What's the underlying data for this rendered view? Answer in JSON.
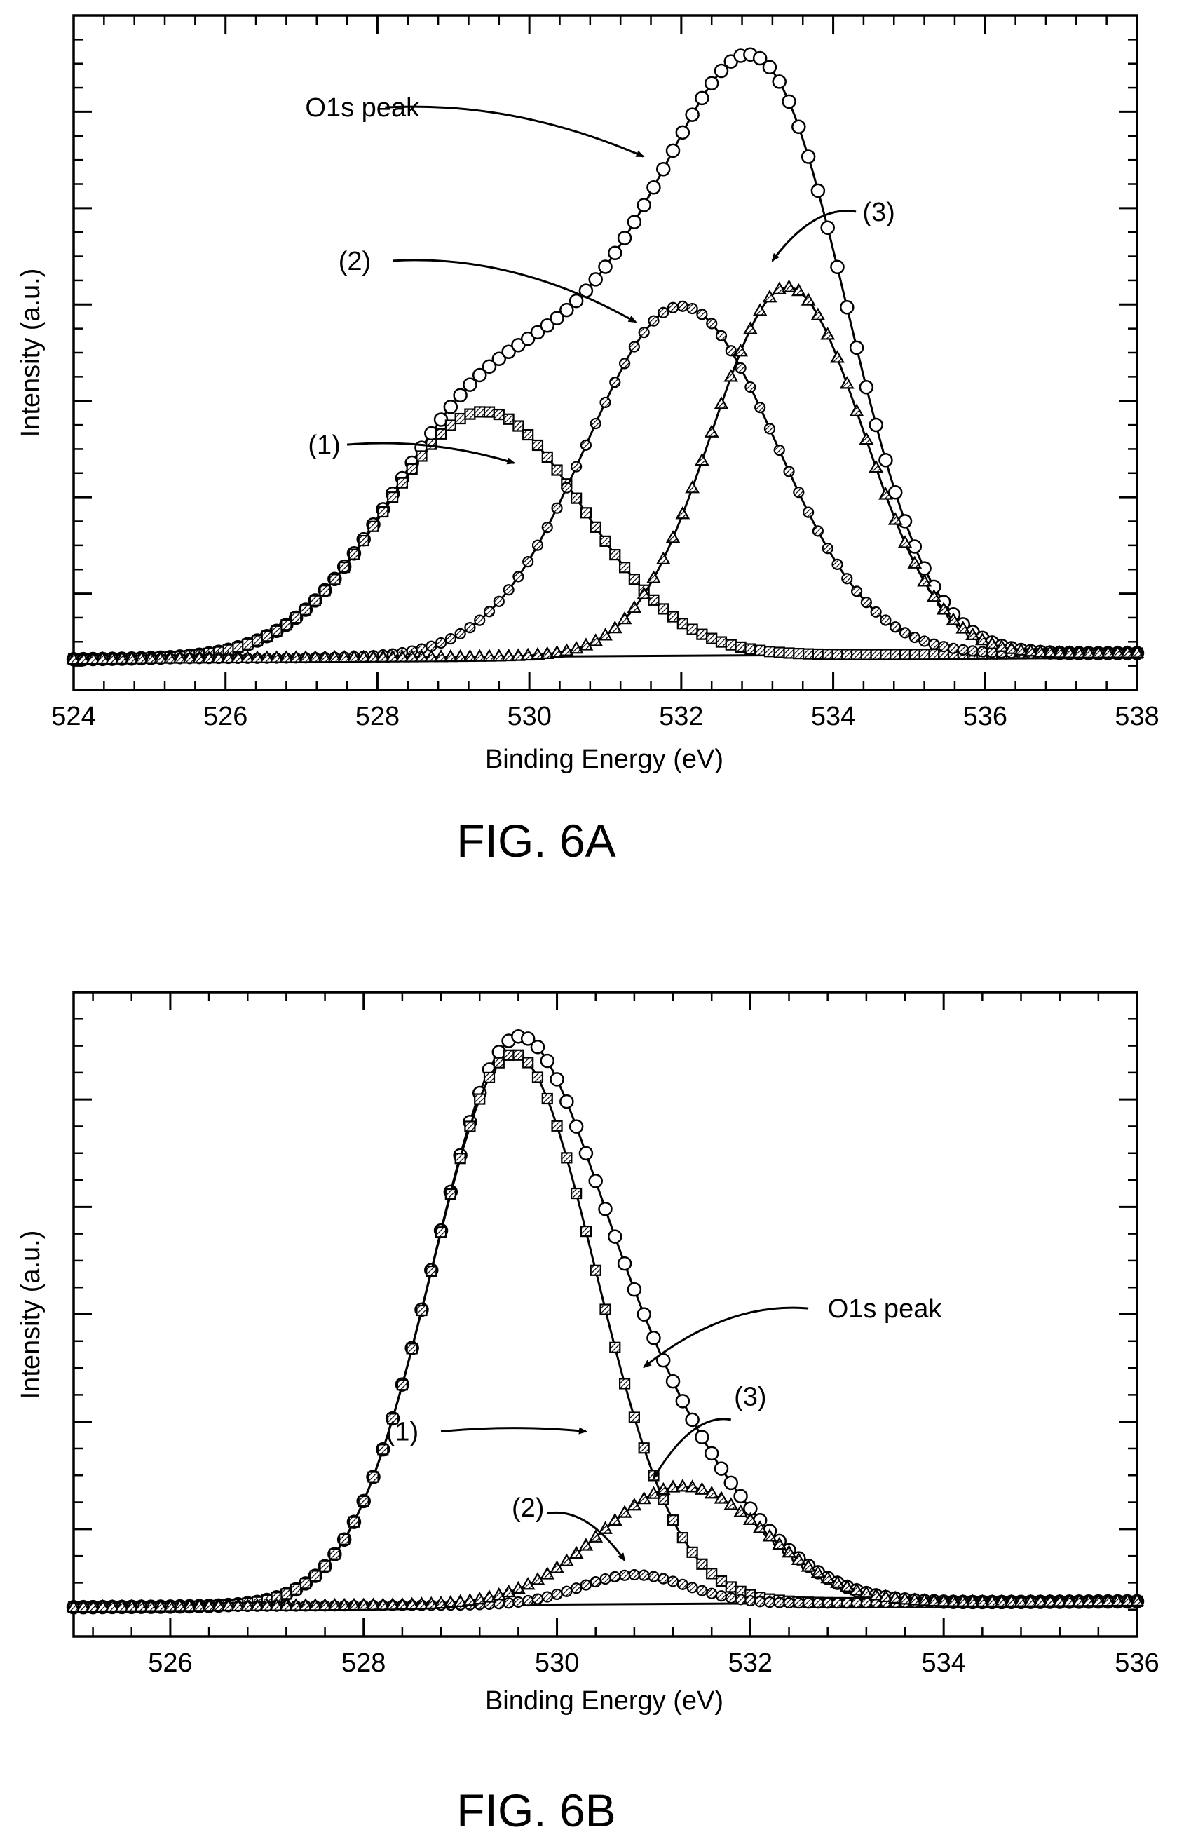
{
  "figures": [
    {
      "caption": "FIG. 6A",
      "chart_data": {
        "type": "line",
        "xlabel": "Binding Energy (eV)",
        "ylabel": "Intensity (a.u.)",
        "xlim": [
          524,
          538
        ],
        "x_ticks": [
          524,
          526,
          528,
          530,
          532,
          534,
          536,
          538
        ],
        "ylim": [
          -0.05,
          1.05
        ],
        "y_tick_labels": "none",
        "grid": false,
        "legend": "none",
        "baseline": [
          [
            524,
            0.0
          ],
          [
            538,
            0.01
          ]
        ],
        "series": [
          {
            "key": "o1s",
            "label": "O1s peak",
            "marker": "circle",
            "components": [
              {
                "c": 529.4,
                "a": 0.4,
                "w": 1.3
              },
              {
                "c": 532.0,
                "a": 0.57,
                "w": 1.25
              },
              {
                "c": 533.4,
                "a": 0.6,
                "w": 1.0
              }
            ]
          },
          {
            "key": "p1",
            "label": "(1)",
            "marker": "square",
            "components": [
              {
                "c": 529.4,
                "a": 0.4,
                "w": 1.3
              }
            ]
          },
          {
            "key": "p2",
            "label": "(2)",
            "marker": "hatched-circle",
            "components": [
              {
                "c": 532.0,
                "a": 0.57,
                "w": 1.25
              }
            ]
          },
          {
            "key": "p3",
            "label": "(3)",
            "marker": "triangle",
            "components": [
              {
                "c": 533.4,
                "a": 0.6,
                "w": 1.0
              }
            ]
          }
        ],
        "annotations": [
          {
            "label": "O1s peak",
            "text_x": 527.8,
            "text_y": 0.9,
            "arrow_to": [
              531.5,
              0.82
            ],
            "arrow_from": [
              528.1,
              0.9
            ]
          },
          {
            "label": "(2)",
            "text_x": 527.7,
            "text_y": 0.65,
            "arrow_to": [
              531.4,
              0.55
            ],
            "arrow_from": [
              528.2,
              0.65
            ]
          },
          {
            "label": "(3)",
            "text_x": 534.6,
            "text_y": 0.73,
            "arrow_to": [
              533.2,
              0.65
            ],
            "arrow_from": [
              534.3,
              0.73
            ]
          },
          {
            "label": "(1)",
            "text_x": 527.3,
            "text_y": 0.35,
            "arrow_to": [
              529.8,
              0.32
            ],
            "arrow_from": [
              527.6,
              0.35
            ]
          }
        ]
      }
    },
    {
      "caption": "FIG. 6B",
      "chart_data": {
        "type": "line",
        "xlabel": "Binding Energy (eV)",
        "ylabel": "Intensity (a.u.)",
        "xlim": [
          525,
          536
        ],
        "x_ticks": [
          526,
          528,
          530,
          532,
          534,
          536
        ],
        "ylim": [
          -0.05,
          1.05
        ],
        "y_tick_labels": "none",
        "grid": false,
        "legend": "none",
        "baseline": [
          [
            525,
            0.0
          ],
          [
            536,
            0.01
          ]
        ],
        "series": [
          {
            "key": "o1s",
            "label": "O1s peak",
            "marker": "circle",
            "components": [
              {
                "c": 529.55,
                "a": 0.94,
                "w": 0.85
              },
              {
                "c": 530.8,
                "a": 0.05,
                "w": 0.55
              },
              {
                "c": 531.3,
                "a": 0.2,
                "w": 0.85
              }
            ]
          },
          {
            "key": "p1",
            "label": "(1)",
            "marker": "square",
            "components": [
              {
                "c": 529.55,
                "a": 0.94,
                "w": 0.85
              }
            ]
          },
          {
            "key": "p2",
            "label": "(2)",
            "marker": "hatched-circle",
            "components": [
              {
                "c": 530.8,
                "a": 0.05,
                "w": 0.55
              }
            ]
          },
          {
            "key": "p3",
            "label": "(3)",
            "marker": "triangle",
            "components": [
              {
                "c": 531.3,
                "a": 0.2,
                "w": 0.85
              }
            ]
          }
        ],
        "annotations": [
          {
            "label": "O1s peak",
            "text_x": 532.8,
            "text_y": 0.51,
            "arrow_to": [
              530.9,
              0.41
            ],
            "arrow_from": [
              532.6,
              0.51
            ]
          },
          {
            "label": "(1)",
            "text_x": 528.4,
            "text_y": 0.3,
            "arrow_to": [
              530.3,
              0.3
            ],
            "arrow_from": [
              528.8,
              0.3
            ]
          },
          {
            "label": "(3)",
            "text_x": 532.0,
            "text_y": 0.36,
            "arrow_to": [
              531.0,
              0.22
            ],
            "arrow_from": [
              531.8,
              0.32
            ]
          },
          {
            "label": "(2)",
            "text_x": 529.7,
            "text_y": 0.17,
            "arrow_to": [
              530.7,
              0.08
            ],
            "arrow_from": [
              529.9,
              0.16
            ]
          }
        ]
      }
    }
  ]
}
